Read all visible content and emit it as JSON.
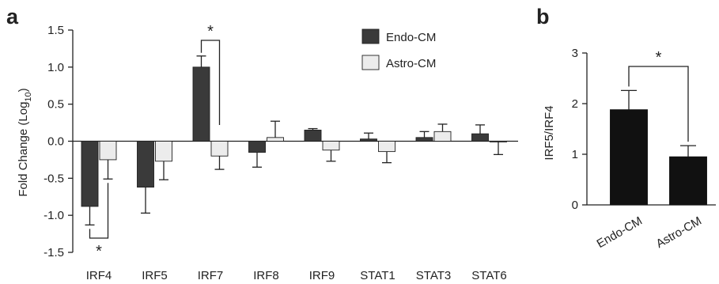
{
  "chart_data": [
    {
      "type": "bar",
      "panel_label": "a",
      "categories": [
        "IRF4",
        "IRF5",
        "IRF7",
        "IRF8",
        "IRF9",
        "STAT1",
        "STAT3",
        "STAT6"
      ],
      "series": [
        {
          "name": "Endo-CM",
          "color": "#3a3a3a",
          "values": [
            -0.88,
            -0.62,
            1.0,
            -0.15,
            0.15,
            0.03,
            0.05,
            0.1
          ],
          "errors": [
            0.25,
            0.35,
            0.15,
            0.2,
            0.02,
            0.08,
            0.08,
            0.12
          ]
        },
        {
          "name": "Astro-CM",
          "color": "#ececec",
          "values": [
            -0.25,
            -0.27,
            -0.2,
            0.05,
            -0.12,
            -0.14,
            0.13,
            -0.01
          ],
          "errors": [
            0.26,
            0.25,
            0.18,
            0.22,
            0.15,
            0.15,
            0.1,
            0.17
          ]
        }
      ],
      "ylabel": "Fold Change (Log",
      "ylabel_sub": "10",
      "ylabel_close": ")",
      "ylim": [
        -1.5,
        1.5
      ],
      "yticks": [
        "1.5",
        "1.0",
        "0.5",
        "0.0",
        "-0.5",
        "-1.0",
        "-1.5"
      ],
      "legend_position": "top-right",
      "significance": [
        {
          "category": "IRF4",
          "marker": "*",
          "position": "below"
        },
        {
          "category": "IRF7",
          "marker": "*",
          "position": "above"
        }
      ],
      "grid": false
    },
    {
      "type": "bar",
      "panel_label": "b",
      "categories": [
        "Endo-CM",
        "Astro-CM"
      ],
      "series": [
        {
          "color": "#111111",
          "values": [
            1.88,
            0.95
          ],
          "errors": [
            0.38,
            0.22
          ]
        }
      ],
      "ylabel": "IRF5/IRF4",
      "ylim": [
        0,
        3
      ],
      "yticks": [
        "3",
        "2",
        "1",
        "0"
      ],
      "significance": [
        {
          "marker": "*",
          "position": "above"
        }
      ],
      "grid": false
    }
  ]
}
